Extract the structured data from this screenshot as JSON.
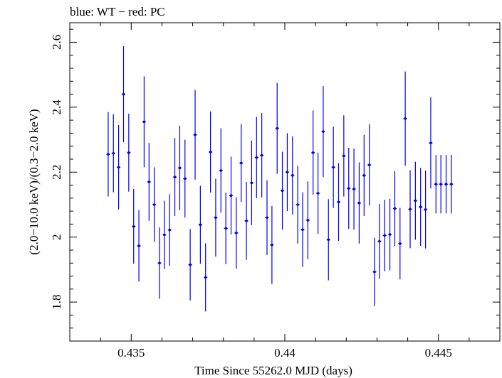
{
  "chart_data": {
    "type": "scatter",
    "title": "blue: WT − red: PC",
    "xlabel": "Time Since 55262.0 MJD (days)",
    "ylabel": "(2.0−10.0 keV)/(0.3−2.0 keV)",
    "xlim": [
      0.433,
      0.447
    ],
    "ylim": [
      1.68,
      2.66
    ],
    "x_ticks": [
      0.435,
      0.44,
      0.445
    ],
    "x_tick_labels": [
      "0.435",
      "0.44",
      "0.445"
    ],
    "y_ticks": [
      1.8,
      2.0,
      2.2,
      2.4,
      2.6
    ],
    "y_tick_labels": [
      "1.8",
      "2",
      "2.2",
      "2.4",
      "2.6"
    ],
    "grid": false,
    "series": [
      {
        "color": "#0000ee",
        "x_err": 6e-05,
        "x": [
          0.43425,
          0.43442,
          0.43459,
          0.43475,
          0.43492,
          0.43508,
          0.43525,
          0.43542,
          0.43558,
          0.43575,
          0.43592,
          0.43608,
          0.43625,
          0.43642,
          0.43658,
          0.43675,
          0.43692,
          0.43708,
          0.43725,
          0.43742,
          0.43758,
          0.43775,
          0.43792,
          0.43808,
          0.43825,
          0.43842,
          0.43858,
          0.43875,
          0.43892,
          0.43908,
          0.43925,
          0.43942,
          0.43958,
          0.43975,
          0.43992,
          0.44008,
          0.44025,
          0.44042,
          0.44058,
          0.44075,
          0.44092,
          0.44108,
          0.44125,
          0.44142,
          0.44158,
          0.44175,
          0.44192,
          0.44208,
          0.44225,
          0.44242,
          0.44258,
          0.44275,
          0.44292,
          0.44308,
          0.44325,
          0.44342,
          0.44358,
          0.44375,
          0.44392,
          0.44408,
          0.44425,
          0.44442,
          0.44458,
          0.44475,
          0.44492,
          0.44508,
          0.44525,
          0.44542
        ],
        "y": [
          2.255,
          2.258,
          2.215,
          2.44,
          2.26,
          2.033,
          1.973,
          2.355,
          2.17,
          2.1,
          1.92,
          2.007,
          2.022,
          2.185,
          2.213,
          2.18,
          1.915,
          2.315,
          2.038,
          1.876,
          2.262,
          2.06,
          2.205,
          2.027,
          2.128,
          2.013,
          2.228,
          2.05,
          2.167,
          2.245,
          2.252,
          2.06,
          1.976,
          2.335,
          2.143,
          2.2,
          2.19,
          2.1,
          2.023,
          2.052,
          2.26,
          2.135,
          2.325,
          1.992,
          2.215,
          2.108,
          2.25,
          2.15,
          2.148,
          2.105,
          2.19,
          2.222,
          1.893,
          1.987,
          2.005,
          2.008,
          2.088,
          1.98,
          2.365,
          2.086,
          2.112,
          2.093,
          2.085,
          2.29,
          2.163,
          2.163,
          2.163,
          2.163
        ],
        "y_err": [
          0.13,
          0.12,
          0.13,
          0.148,
          0.12,
          0.115,
          0.11,
          0.14,
          0.12,
          0.115,
          0.11,
          0.105,
          0.11,
          0.12,
          0.13,
          0.12,
          0.11,
          0.138,
          0.12,
          0.105,
          0.125,
          0.12,
          0.13,
          0.11,
          0.12,
          0.11,
          0.12,
          0.12,
          0.13,
          0.125,
          0.13,
          0.115,
          0.12,
          0.14,
          0.12,
          0.12,
          0.12,
          0.12,
          0.115,
          0.12,
          0.13,
          0.125,
          0.14,
          0.125,
          0.125,
          0.12,
          0.125,
          0.125,
          0.125,
          0.125,
          0.125,
          0.125,
          0.105,
          0.115,
          0.11,
          0.11,
          0.115,
          0.11,
          0.145,
          0.12,
          0.12,
          0.12,
          0.12,
          0.14,
          0.09,
          0.09,
          0.09,
          0.09
        ]
      }
    ]
  }
}
